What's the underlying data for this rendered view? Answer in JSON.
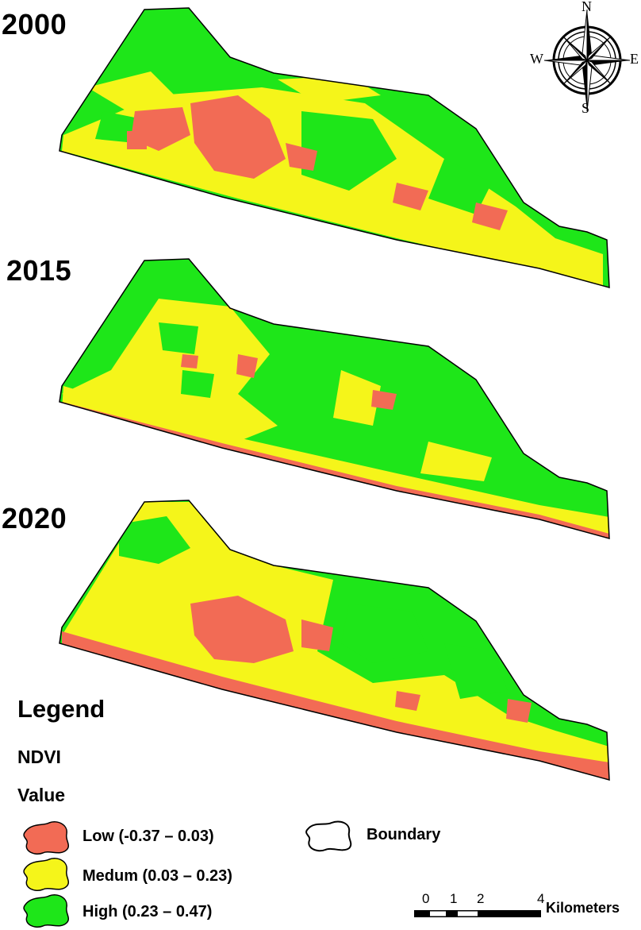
{
  "panels": [
    {
      "year": "2000"
    },
    {
      "year": "2015"
    },
    {
      "year": "2020"
    }
  ],
  "compass": {
    "n": "N",
    "s": "S",
    "e": "E",
    "w": "W"
  },
  "colors": {
    "low": "#F26B55",
    "medium": "#F5F51A",
    "high": "#1EE619",
    "boundary": "#000000"
  },
  "legend": {
    "title": "Legend",
    "layer": "NDVI",
    "field": "Value",
    "items": [
      {
        "label": "Low (-0.37 – 0.03)",
        "class": "low"
      },
      {
        "label": "Medum (0.03 – 0.23)",
        "class": "medium"
      },
      {
        "label": "High (0.23 – 0.47)",
        "class": "high"
      }
    ],
    "boundary_label": "Boundary"
  },
  "scalebar": {
    "ticks": [
      "0",
      "1",
      "2",
      "4"
    ],
    "unit": "Kilometers"
  }
}
